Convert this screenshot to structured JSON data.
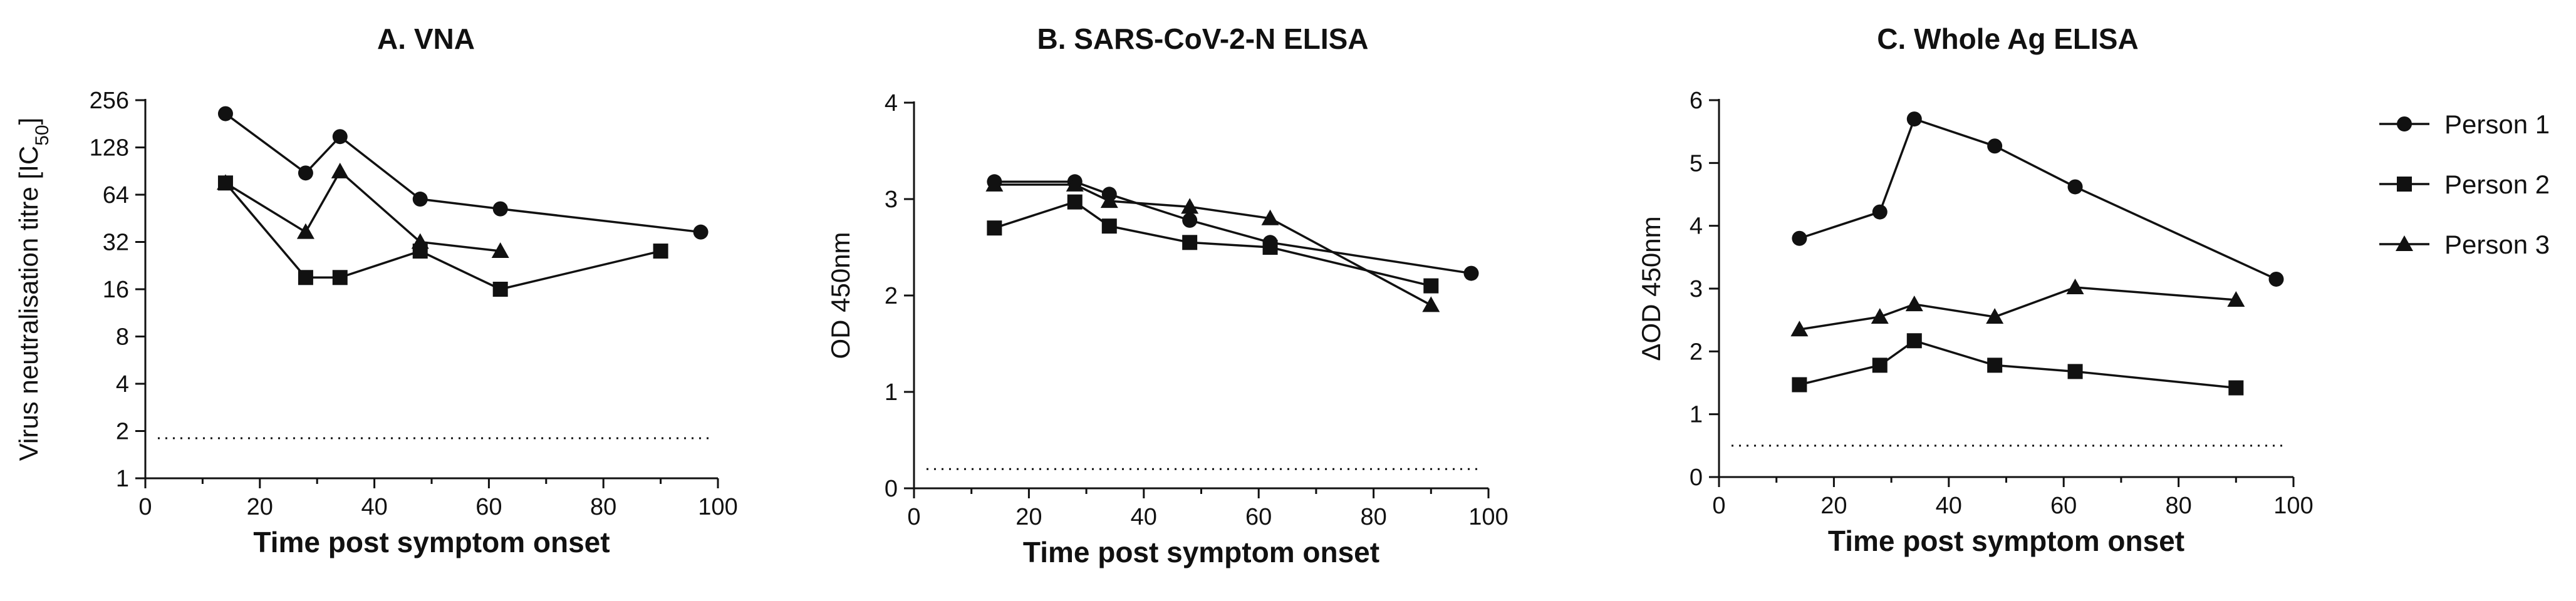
{
  "legend": [
    {
      "name": "Person 1",
      "marker": "circle"
    },
    {
      "name": "Person 2",
      "marker": "square"
    },
    {
      "name": "Person 3",
      "marker": "triangle"
    }
  ],
  "chart_data": [
    {
      "type": "line",
      "title": "A. VNA",
      "xlabel": "Time post symptom onset",
      "ylabel": "Virus neutralisation titre [IC50]",
      "ylabel_main": "Virus neutralisation titre [IC",
      "ylabel_sub": "50",
      "ylabel_close": "]",
      "yscale": "log2",
      "xlim": [
        0,
        100
      ],
      "ylim": [
        1,
        256
      ],
      "xticks": [
        0,
        20,
        40,
        60,
        80,
        100
      ],
      "yticks": [
        1,
        2,
        4,
        8,
        16,
        32,
        64,
        128,
        256
      ],
      "ytick_labels": [
        "1",
        "2",
        "4",
        "8",
        "16",
        "32",
        "64",
        "128",
        "256"
      ],
      "threshold": 1.8,
      "series": [
        {
          "name": "Person 1",
          "marker": "circle",
          "x": [
            14,
            28,
            34,
            48,
            62,
            97
          ],
          "y": [
            210,
            88,
            150,
            60,
            52,
            37
          ]
        },
        {
          "name": "Person 2",
          "marker": "square",
          "x": [
            14,
            28,
            34,
            48,
            62,
            90
          ],
          "y": [
            76,
            19,
            19,
            28,
            16,
            28
          ]
        },
        {
          "name": "Person 3",
          "marker": "triangle",
          "x": [
            14,
            28,
            34,
            48,
            62
          ],
          "y": [
            76,
            37,
            90,
            32,
            28
          ]
        }
      ]
    },
    {
      "type": "line",
      "title": "B. SARS-CoV-2-N ELISA",
      "xlabel": "Time post symptom onset",
      "ylabel": "OD 450nm",
      "yscale": "linear",
      "xlim": [
        0,
        100
      ],
      "ylim": [
        0,
        4
      ],
      "xticks": [
        0,
        20,
        40,
        60,
        80,
        100
      ],
      "yticks": [
        0,
        1,
        2,
        3,
        4
      ],
      "ytick_labels": [
        "0",
        "1",
        "2",
        "3",
        "4"
      ],
      "threshold": 0.2,
      "series": [
        {
          "name": "Person 1",
          "marker": "circle",
          "x": [
            14,
            28,
            34,
            48,
            62,
            97
          ],
          "y": [
            3.18,
            3.18,
            3.05,
            2.78,
            2.55,
            2.23
          ]
        },
        {
          "name": "Person 2",
          "marker": "square",
          "x": [
            14,
            28,
            34,
            48,
            62,
            90
          ],
          "y": [
            2.7,
            2.97,
            2.72,
            2.55,
            2.5,
            2.1
          ]
        },
        {
          "name": "Person 3",
          "marker": "triangle",
          "x": [
            14,
            28,
            34,
            48,
            62,
            90
          ],
          "y": [
            3.15,
            3.15,
            2.98,
            2.92,
            2.8,
            1.9
          ]
        }
      ]
    },
    {
      "type": "line",
      "title": "C. Whole Ag ELISA",
      "xlabel": "Time post symptom onset",
      "ylabel": "ΔOD 450nm",
      "yscale": "linear",
      "xlim": [
        0,
        100
      ],
      "ylim": [
        0,
        6
      ],
      "xticks": [
        0,
        20,
        40,
        60,
        80,
        100
      ],
      "yticks": [
        0,
        1,
        2,
        3,
        4,
        5,
        6
      ],
      "ytick_labels": [
        "0",
        "1",
        "2",
        "3",
        "4",
        "5",
        "6"
      ],
      "threshold": 0.5,
      "series": [
        {
          "name": "Person 1",
          "marker": "circle",
          "x": [
            14,
            28,
            34,
            48,
            62,
            97
          ],
          "y": [
            3.8,
            4.22,
            5.7,
            5.27,
            4.62,
            3.15
          ]
        },
        {
          "name": "Person 2",
          "marker": "square",
          "x": [
            14,
            28,
            34,
            48,
            62,
            90
          ],
          "y": [
            1.47,
            1.78,
            2.17,
            1.78,
            1.68,
            1.42
          ]
        },
        {
          "name": "Person 3",
          "marker": "triangle",
          "x": [
            14,
            28,
            34,
            48,
            62,
            90
          ],
          "y": [
            2.35,
            2.55,
            2.75,
            2.55,
            3.02,
            2.82
          ]
        }
      ]
    }
  ]
}
